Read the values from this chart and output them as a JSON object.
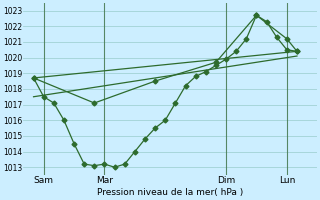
{
  "xlabel": "Pression niveau de la mer( hPa )",
  "bg_color": "#cceeff",
  "grid_color": "#99cccc",
  "line_color": "#2d6b2d",
  "day_line_color": "#336633",
  "ylim": [
    1012.5,
    1023.5
  ],
  "yticks": [
    1013,
    1014,
    1015,
    1016,
    1017,
    1018,
    1019,
    1020,
    1021,
    1022,
    1023
  ],
  "xlim": [
    -0.5,
    14.0
  ],
  "day_positions": [
    0.5,
    3.5,
    9.5,
    12.5
  ],
  "day_vlines": [
    0.5,
    3.5,
    9.5,
    12.5
  ],
  "day_labels": [
    "Sam",
    "Mar",
    "Dim",
    "Lun"
  ],
  "series1_x": [
    0.0,
    0.5,
    1.0,
    1.5,
    2.0,
    2.5,
    3.0,
    3.5,
    4.0,
    4.5,
    5.0,
    5.5,
    6.0,
    6.5,
    7.0,
    7.5,
    8.0,
    8.5,
    9.0,
    9.5,
    10.0,
    10.5,
    11.0,
    11.5,
    12.0,
    12.5,
    13.0
  ],
  "series1_y": [
    1018.7,
    1017.5,
    1017.1,
    1016.0,
    1014.5,
    1013.2,
    1013.1,
    1013.2,
    1013.0,
    1013.2,
    1014.0,
    1014.8,
    1015.5,
    1016.0,
    1017.1,
    1018.2,
    1018.8,
    1019.1,
    1019.5,
    1019.9,
    1020.4,
    1021.2,
    1022.7,
    1022.3,
    1021.3,
    1020.5,
    1020.4
  ],
  "series2_x": [
    0.0,
    3.0,
    6.0,
    9.0,
    11.0,
    12.5,
    13.0
  ],
  "series2_y": [
    1018.7,
    1017.1,
    1018.5,
    1019.7,
    1022.7,
    1021.2,
    1020.4
  ],
  "series3_x": [
    0.0,
    13.0
  ],
  "series3_y": [
    1017.5,
    1020.1
  ],
  "series4_x": [
    0.0,
    13.0
  ],
  "series4_y": [
    1018.7,
    1020.4
  ]
}
